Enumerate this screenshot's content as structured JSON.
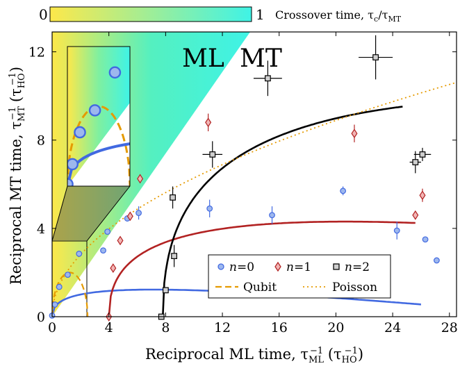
{
  "colorbar": {
    "min_label": "0",
    "max_label": "1",
    "title": "Crossover time, τ",
    "title_sub": "c",
    "title_mid": "/τ",
    "title_sub2": "MT",
    "color_low": "#fde84a",
    "color_high": "#3ff3e6"
  },
  "region_labels": {
    "left": "ML",
    "right": "MT"
  },
  "chart_data": {
    "type": "scatter",
    "xlabel": "Reciprocal ML time, τ",
    "xlabel_sub": "ML",
    "xlabel_sup": "−1",
    "xlabel_unit": " (τ",
    "xlabel_unit_sub": "HO",
    "xlabel_unit_sup": "−1",
    "xlabel_unit_close": ")",
    "ylabel": "Reciprocal MT time, τ",
    "ylabel_sub": "MT",
    "ylabel_sup": "−1",
    "ylabel_unit": " (τ",
    "ylabel_unit_sub": "HO",
    "ylabel_unit_sup": "−1",
    "ylabel_unit_close": ")",
    "xlim": [
      0,
      28.5
    ],
    "ylim": [
      0,
      12.9
    ],
    "xticks": [
      0,
      4,
      8,
      12,
      16,
      20,
      24,
      28
    ],
    "yticks": [
      0,
      4,
      8,
      12
    ],
    "grid": false,
    "legend_position": "bottom-right",
    "series": [
      {
        "name": "n=0",
        "name_var": "n",
        "name_val": "=0",
        "marker": "circle",
        "color": "#4169e1",
        "points": [
          [
            0,
            0.05
          ],
          [
            0.2,
            0.55
          ],
          [
            0.5,
            1.35
          ],
          [
            1.1,
            1.9
          ],
          [
            1.9,
            2.85
          ],
          [
            3.6,
            3.0
          ],
          [
            3.9,
            3.85
          ],
          [
            5.3,
            4.45
          ],
          [
            6.1,
            4.7
          ],
          [
            11.1,
            4.9
          ],
          [
            15.5,
            4.6
          ],
          [
            20.5,
            5.7
          ],
          [
            24.3,
            3.9
          ],
          [
            26.3,
            3.5
          ],
          [
            27.1,
            2.55
          ]
        ],
        "yerr": [
          0,
          0,
          0,
          0,
          0,
          0,
          0,
          0,
          0.3,
          0.4,
          0.4,
          0.2,
          0.4,
          0,
          0
        ],
        "fit": {
          "type": "sqrt-power",
          "x0": 0,
          "x1": 26,
          "a": 0.5623,
          "b": 2.4516,
          "k": 0.25
        }
      },
      {
        "name": "n=1",
        "name_var": "n",
        "name_val": "=1",
        "marker": "diamond",
        "color": "#b22222",
        "points": [
          [
            4.0,
            0.0
          ],
          [
            4.3,
            2.2
          ],
          [
            4.8,
            3.45
          ],
          [
            5.5,
            4.55
          ],
          [
            6.2,
            6.25
          ],
          [
            11.0,
            8.8
          ],
          [
            21.3,
            8.3
          ],
          [
            25.6,
            4.6
          ],
          [
            26.1,
            5.5
          ]
        ],
        "yerr": [
          0,
          0,
          0,
          0,
          0.2,
          0.4,
          0.4,
          0,
          0.3
        ],
        "fit": {
          "type": "sqrt-power",
          "x0": 4.0,
          "x1": 25.6,
          "a": 1.0442,
          "b": 3.0308,
          "k": 0.25
        }
      },
      {
        "name": "n=2",
        "name_var": "n",
        "name_val": "=2",
        "marker": "square",
        "color": "#000000",
        "points": [
          [
            7.7,
            0.0
          ],
          [
            8.0,
            1.2
          ],
          [
            8.6,
            2.75
          ],
          [
            8.5,
            5.4
          ],
          [
            11.3,
            7.35
          ],
          [
            15.2,
            10.8
          ],
          [
            22.8,
            11.75
          ],
          [
            25.6,
            7.0
          ],
          [
            26.1,
            7.35
          ]
        ],
        "yerr": [
          0,
          0,
          0.5,
          0.5,
          0.6,
          0.8,
          1.0,
          0.5,
          0.3
        ],
        "xerr": [
          0,
          0,
          0,
          0,
          0.7,
          1.0,
          1.2,
          0.4,
          0.6
        ],
        "fit": {
          "type": "sqrt-power",
          "x0": 7.8,
          "x1": 24.7,
          "a": 1.6232,
          "b": 3.4538,
          "k": 0.25
        }
      },
      {
        "name": "Qubit",
        "style": "dashed",
        "color": "#e59a00",
        "curve": {
          "type": "semicircle",
          "cx": 1.25,
          "r": 1.25,
          "h": 2.0
        }
      },
      {
        "name": "Poisson",
        "style": "dotted",
        "color": "#e59a00",
        "curve": {
          "type": "sqrt",
          "x0": 0,
          "x1": 28.5,
          "c": 1.988
        }
      }
    ]
  }
}
